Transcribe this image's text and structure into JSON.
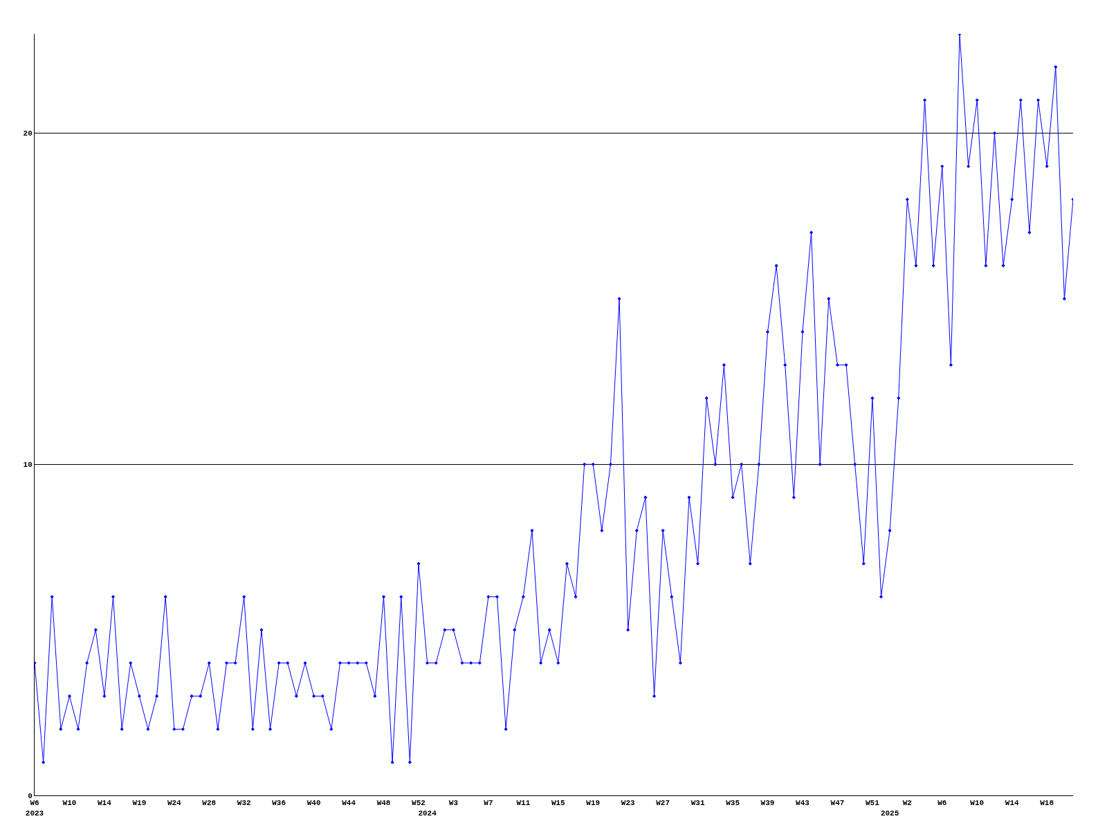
{
  "chart_data": {
    "type": "line",
    "categories": [
      "W6\n2023",
      null,
      null,
      null,
      "W10",
      null,
      null,
      null,
      "W14",
      null,
      null,
      null,
      "W19",
      null,
      null,
      null,
      "W24",
      null,
      null,
      null,
      "W28",
      null,
      null,
      null,
      "W32",
      null,
      null,
      null,
      "W36",
      null,
      null,
      null,
      "W40",
      null,
      null,
      null,
      "W44",
      null,
      null,
      null,
      "W48",
      null,
      null,
      null,
      "W52",
      "\n2024",
      null,
      null,
      "W3",
      null,
      null,
      null,
      "W7",
      null,
      null,
      null,
      "W11",
      null,
      null,
      null,
      "W15",
      null,
      null,
      null,
      "W19",
      null,
      null,
      null,
      "W23",
      null,
      null,
      null,
      "W27",
      null,
      null,
      null,
      "W31",
      null,
      null,
      null,
      "W35",
      null,
      null,
      null,
      "W39",
      null,
      null,
      null,
      "W43",
      null,
      null,
      null,
      "W47",
      null,
      null,
      null,
      "W51",
      null,
      "\n2025",
      null,
      "W2",
      null,
      null,
      null,
      "W6",
      null,
      null,
      null,
      "W10",
      null,
      null,
      null,
      "W14",
      null,
      null,
      null,
      "W18",
      null,
      null,
      null
    ],
    "series": [
      {
        "color": "#0000ff",
        "values": [
          4,
          1,
          6,
          2,
          3,
          2,
          4,
          5,
          3,
          6,
          2,
          4,
          3,
          2,
          3,
          6,
          2,
          2,
          3,
          3,
          4,
          2,
          4,
          4,
          6,
          2,
          5,
          2,
          4,
          4,
          3,
          4,
          3,
          3,
          2,
          4,
          4,
          4,
          4,
          3,
          6,
          1,
          6,
          1,
          7,
          4,
          4,
          5,
          5,
          4,
          4,
          4,
          6,
          6,
          2,
          5,
          6,
          8,
          4,
          5,
          4,
          7,
          6,
          10,
          10,
          8,
          10,
          15,
          5,
          8,
          9,
          3,
          8,
          6,
          4,
          9,
          7,
          12,
          10,
          13,
          9,
          10,
          7,
          10,
          14,
          16,
          13,
          9,
          14,
          17,
          10,
          15,
          13,
          13,
          10,
          7,
          12,
          6,
          8,
          12,
          18,
          16,
          21,
          16,
          19,
          13,
          23,
          19,
          21,
          16,
          20,
          16,
          18,
          21,
          17,
          21,
          19,
          22,
          15,
          18
        ]
      }
    ],
    "ylim": [
      0,
      23
    ],
    "yticks": [
      0,
      10,
      20
    ],
    "grid": "y",
    "marker": "diamond",
    "line_style": "solid"
  }
}
